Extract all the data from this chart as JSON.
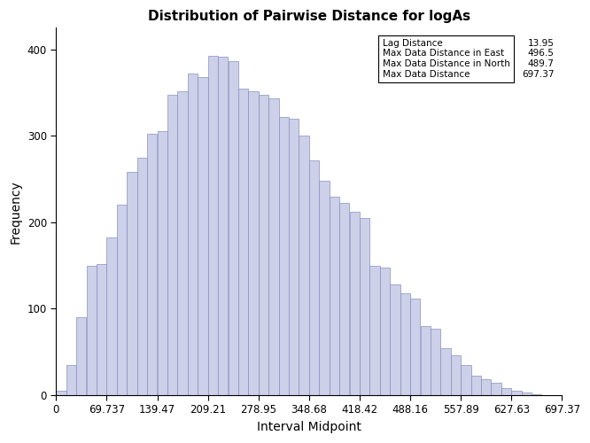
{
  "title": "Distribution of Pairwise Distance for logAs",
  "xlabel": "Interval Midpoint",
  "ylabel": "Frequency",
  "bar_color": "#ccd0e8",
  "bar_edgecolor": "#8890c0",
  "background_color": "#ffffff",
  "xlim": [
    0,
    697.37
  ],
  "ylim": [
    0,
    425
  ],
  "yticks": [
    0,
    100,
    200,
    300,
    400
  ],
  "xtick_labels": [
    "0",
    "69.737",
    "139.47",
    "209.21",
    "278.95",
    "348.68",
    "418.42",
    "488.16",
    "557.89",
    "627.63",
    "697.37"
  ],
  "lag_distance": 13.95,
  "max_east": 496.5,
  "max_north": 489.7,
  "max_distance": 697.37,
  "bin_width": 13.95,
  "bar_heights": [
    5,
    35,
    90,
    150,
    152,
    182,
    220,
    258,
    275,
    302,
    305,
    348,
    352,
    372,
    368,
    393,
    392,
    387,
    355,
    352,
    348,
    343,
    322,
    320,
    300,
    272,
    248,
    230,
    222,
    212,
    205,
    150,
    148,
    128,
    118,
    112,
    80,
    77,
    54,
    46,
    35,
    22,
    18,
    14,
    8,
    5,
    3,
    1,
    0,
    0,
    0,
    0,
    0
  ]
}
